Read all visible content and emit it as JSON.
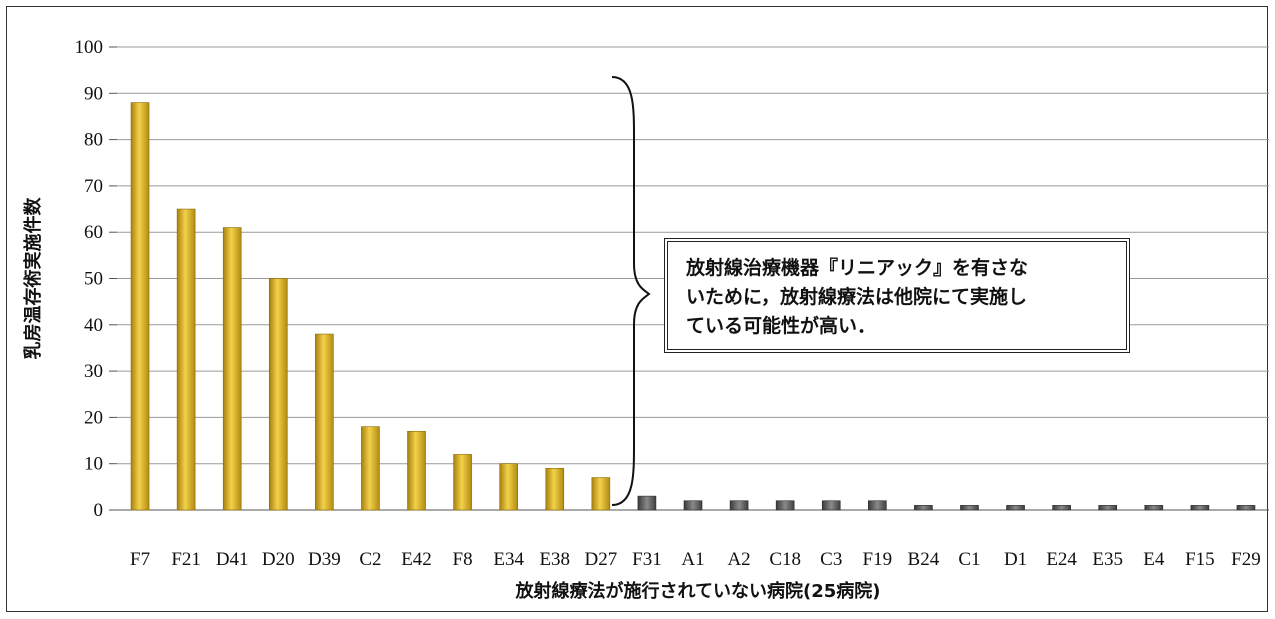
{
  "chart_data": {
    "type": "bar",
    "title": "",
    "ylabel": "乳房温存術実施件数",
    "xlabel": "放射線療法が施行されていない病院(25病院)",
    "ylim": [
      0,
      100
    ],
    "yticks": [
      0,
      10,
      20,
      30,
      40,
      50,
      60,
      70,
      80,
      90,
      100
    ],
    "grid": true,
    "categories": [
      "F7",
      "F21",
      "D41",
      "D20",
      "D39",
      "C2",
      "E42",
      "F8",
      "E34",
      "E38",
      "D27",
      "F31",
      "A1",
      "A2",
      "C18",
      "C3",
      "F19",
      "B24",
      "C1",
      "D1",
      "E24",
      "E35",
      "E4",
      "F15",
      "F29"
    ],
    "values": [
      88,
      65,
      61,
      50,
      38,
      18,
      17,
      12,
      10,
      9,
      7,
      3,
      2,
      2,
      2,
      2,
      2,
      1,
      1,
      1,
      1,
      1,
      1,
      1,
      1
    ],
    "colors": {
      "gold_group": "#e0b823",
      "gray_group": "#606060"
    },
    "gold_group_count": 11,
    "annotation": {
      "text": "放射線治療機器『リニアック』を有さな\nいために，放射線療法は他院にて実施し\nている可能性が高い．",
      "bracket": "right-brace",
      "spans_categories": [
        "F7",
        "D27"
      ]
    }
  }
}
